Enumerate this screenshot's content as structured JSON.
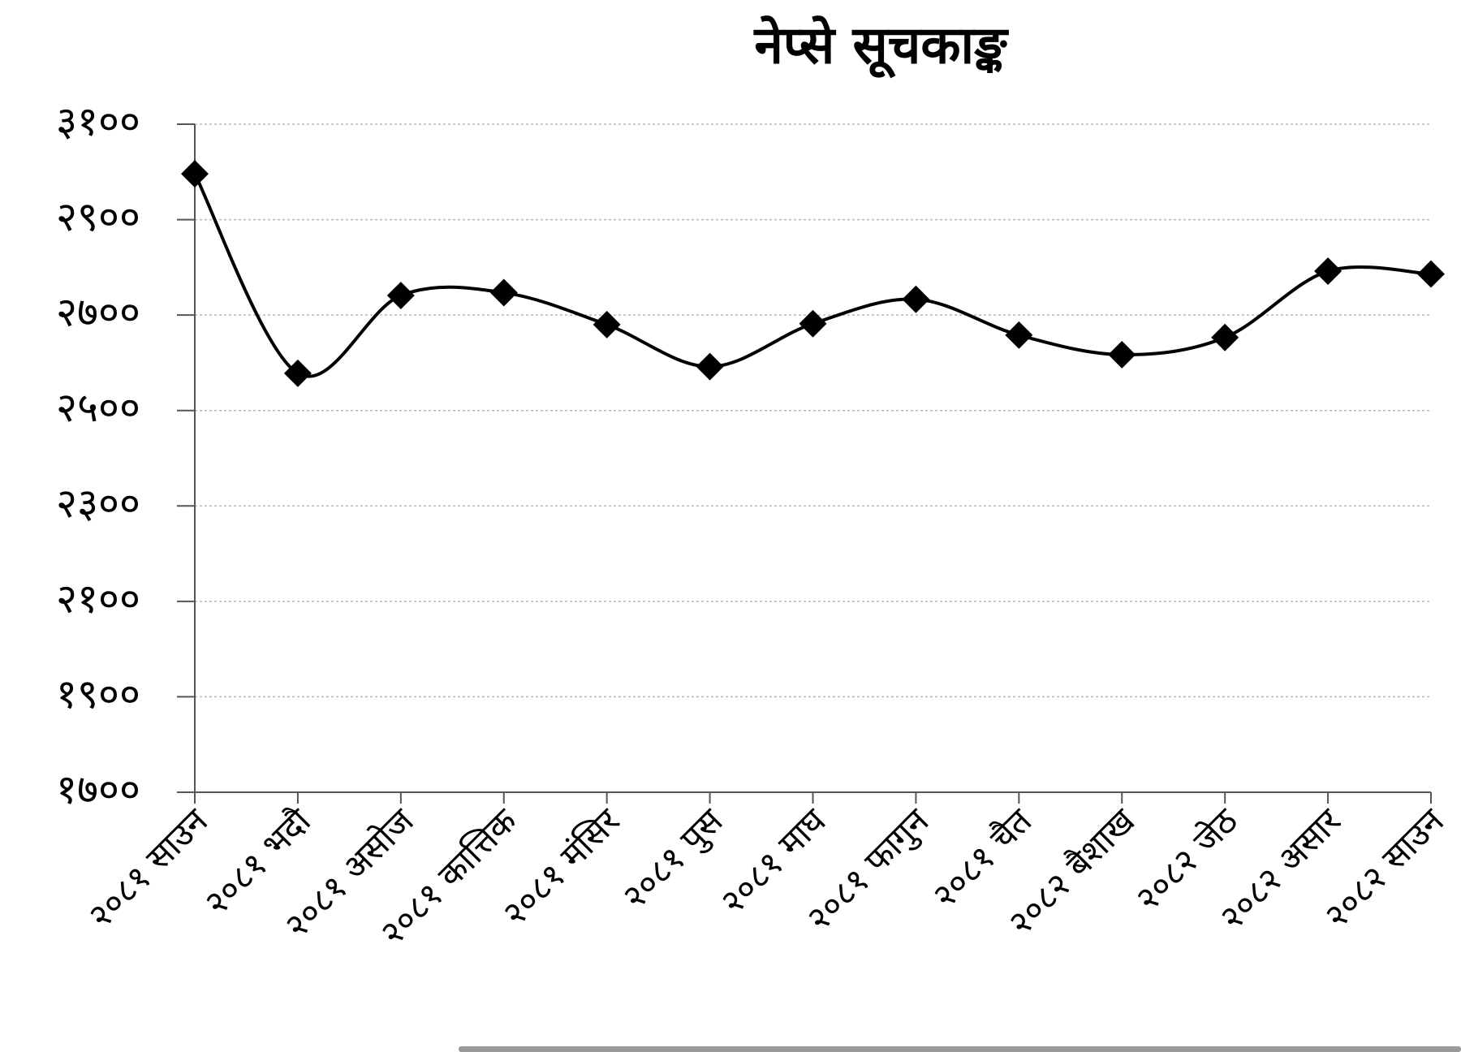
{
  "chart_data": {
    "type": "line",
    "title": "नेप्से सूचकाङ्क",
    "categories": [
      "२०८१ साउन",
      "२०८१ भदौ",
      "२०८१ असोज",
      "२०८१ कात्तिक",
      "२०८१ मंसिर",
      "२०८१ पुस",
      "२०८१ माघ",
      "२०८१ फागुन",
      "२०८१ चैत",
      "२०८२ बैशाख",
      "२०८२ जेठ",
      "२०८२ असार",
      "२०८२ साउन"
    ],
    "values": [
      2996,
      2578,
      2741,
      2747,
      2680,
      2592,
      2682,
      2733,
      2658,
      2617,
      2653,
      2792,
      2786
    ],
    "color": "#000000",
    "ylim": [
      1700,
      3100
    ],
    "yticks": [
      {
        "value": 1700,
        "label": "१७००"
      },
      {
        "value": 1900,
        "label": "१९००"
      },
      {
        "value": 2100,
        "label": "२१००"
      },
      {
        "value": 2300,
        "label": "२३००"
      },
      {
        "value": 2500,
        "label": "२५००"
      },
      {
        "value": 2700,
        "label": "२७००"
      },
      {
        "value": 2900,
        "label": "२९००"
      },
      {
        "value": 3100,
        "label": "३१००"
      }
    ],
    "grid": true
  }
}
